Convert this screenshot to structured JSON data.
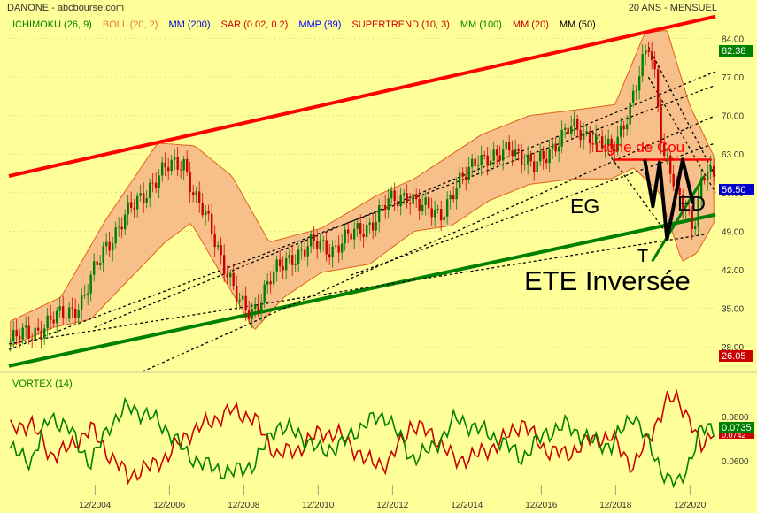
{
  "header": {
    "symbol": "DANONE - abcbourse.com",
    "period": "20 ANS - MENSUEL"
  },
  "indicators": [
    {
      "label": "ICHIMOKU (26, 9)",
      "color": "#008000"
    },
    {
      "label": "BOLL (20, 2)",
      "color": "#e8734a"
    },
    {
      "label": "MM (200)",
      "color": "#0000cc"
    },
    {
      "label": "SAR (0.02, 0.2)",
      "color": "#cc0000"
    },
    {
      "label": "MMP (89)",
      "color": "#0000ff"
    },
    {
      "label": "SUPERTREND (10, 3)",
      "color": "#cc0000"
    },
    {
      "label": "MM (100)",
      "color": "#008000"
    },
    {
      "label": "MM (20)",
      "color": "#cc0000"
    },
    {
      "label": "MM (50)",
      "color": "#000000"
    }
  ],
  "colors": {
    "background": "#ffff99",
    "up_candle": "#008000",
    "down_candle": "#cc0000",
    "bollinger_fill": "#f7c08a",
    "bollinger_line": "#e06020",
    "resistance_line": "#ff0000",
    "support_line": "#008000",
    "neckline": "#ff0000",
    "pattern": "#000000"
  },
  "annotations": {
    "neckline_label": "Ligne de Cou",
    "left_shoulder": "EG",
    "right_shoulder": "ED",
    "head": "T",
    "pattern_name": "ETE Inversée"
  },
  "price_badges": {
    "high": "82.38",
    "last": "56.50",
    "low": "26.05"
  },
  "vortex": {
    "label": "VORTEX (14)",
    "ticks": [
      "0.0800",
      "0.0600"
    ],
    "value_badge": "0.0735",
    "value_badge_hidden": "0.0742"
  },
  "chart_data": {
    "type": "candlestick",
    "title": "DANONE",
    "x_tick_labels": [
      "12/2004",
      "12/2006",
      "12/2008",
      "12/2010",
      "12/2012",
      "12/2014",
      "12/2016",
      "12/2018",
      "12/2020"
    ],
    "y_tick_labels": [
      "84.00",
      "77.00",
      "70.00",
      "63.00",
      "56.00",
      "49.00",
      "42.00",
      "35.00",
      "28.00"
    ],
    "ylim": [
      23.5,
      86.5
    ],
    "x_range": [
      2002.6,
      2021.6
    ],
    "close_anchors": [
      {
        "x": 2002.65,
        "y": 29.0
      },
      {
        "x": 2003.3,
        "y": 31.0
      },
      {
        "x": 2004.0,
        "y": 33.5
      },
      {
        "x": 2004.6,
        "y": 36.5
      },
      {
        "x": 2005.2,
        "y": 46.5
      },
      {
        "x": 2005.8,
        "y": 52.0
      },
      {
        "x": 2006.4,
        "y": 57.5
      },
      {
        "x": 2006.9,
        "y": 60.5
      },
      {
        "x": 2007.3,
        "y": 62.0
      },
      {
        "x": 2007.6,
        "y": 55.0
      },
      {
        "x": 2008.0,
        "y": 50.0
      },
      {
        "x": 2008.35,
        "y": 44.0
      },
      {
        "x": 2008.8,
        "y": 35.5
      },
      {
        "x": 2009.1,
        "y": 34.0
      },
      {
        "x": 2009.6,
        "y": 40.0
      },
      {
        "x": 2010.2,
        "y": 44.5
      },
      {
        "x": 2010.8,
        "y": 46.5
      },
      {
        "x": 2011.3,
        "y": 46.0
      },
      {
        "x": 2011.8,
        "y": 48.0
      },
      {
        "x": 2012.4,
        "y": 51.0
      },
      {
        "x": 2012.8,
        "y": 54.0
      },
      {
        "x": 2013.3,
        "y": 56.0
      },
      {
        "x": 2013.7,
        "y": 53.0
      },
      {
        "x": 2014.2,
        "y": 52.5
      },
      {
        "x": 2014.8,
        "y": 58.0
      },
      {
        "x": 2015.2,
        "y": 63.0
      },
      {
        "x": 2015.7,
        "y": 61.5
      },
      {
        "x": 2016.1,
        "y": 65.0
      },
      {
        "x": 2016.7,
        "y": 60.0
      },
      {
        "x": 2017.2,
        "y": 64.5
      },
      {
        "x": 2017.7,
        "y": 67.5
      },
      {
        "x": 2018.3,
        "y": 66.5
      },
      {
        "x": 2018.8,
        "y": 63.0
      },
      {
        "x": 2019.2,
        "y": 70.0
      },
      {
        "x": 2019.55,
        "y": 77.0
      },
      {
        "x": 2019.8,
        "y": 82.5
      },
      {
        "x": 2020.0,
        "y": 76.5
      },
      {
        "x": 2020.2,
        "y": 63.0
      },
      {
        "x": 2020.35,
        "y": 62.0
      },
      {
        "x": 2020.55,
        "y": 55.0
      },
      {
        "x": 2020.8,
        "y": 52.5
      },
      {
        "x": 2021.0,
        "y": 49.5
      },
      {
        "x": 2021.2,
        "y": 58.0
      },
      {
        "x": 2021.4,
        "y": 61.0
      },
      {
        "x": 2021.6,
        "y": 56.5
      }
    ],
    "bollinger_upper_anchors": [
      {
        "x": 2002.6,
        "y": 32.5
      },
      {
        "x": 2004.0,
        "y": 37.0
      },
      {
        "x": 2005.2,
        "y": 51.0
      },
      {
        "x": 2006.6,
        "y": 65.0
      },
      {
        "x": 2007.6,
        "y": 64.5
      },
      {
        "x": 2008.6,
        "y": 59.0
      },
      {
        "x": 2009.6,
        "y": 47.0
      },
      {
        "x": 2011.0,
        "y": 49.5
      },
      {
        "x": 2012.5,
        "y": 55.5
      },
      {
        "x": 2013.5,
        "y": 58.5
      },
      {
        "x": 2015.3,
        "y": 66.5
      },
      {
        "x": 2016.6,
        "y": 70.0
      },
      {
        "x": 2017.8,
        "y": 71.0
      },
      {
        "x": 2018.9,
        "y": 72.0
      },
      {
        "x": 2019.7,
        "y": 85.0
      },
      {
        "x": 2020.3,
        "y": 85.5
      },
      {
        "x": 2020.9,
        "y": 72.0
      },
      {
        "x": 2021.6,
        "y": 62.0
      }
    ],
    "bollinger_lower_anchors": [
      {
        "x": 2002.6,
        "y": 28.0
      },
      {
        "x": 2003.8,
        "y": 31.5
      },
      {
        "x": 2004.8,
        "y": 33.0
      },
      {
        "x": 2005.8,
        "y": 40.0
      },
      {
        "x": 2006.8,
        "y": 47.0
      },
      {
        "x": 2007.5,
        "y": 50.5
      },
      {
        "x": 2008.5,
        "y": 39.0
      },
      {
        "x": 2009.2,
        "y": 31.0
      },
      {
        "x": 2010.0,
        "y": 37.0
      },
      {
        "x": 2011.0,
        "y": 41.5
      },
      {
        "x": 2012.3,
        "y": 43.0
      },
      {
        "x": 2013.5,
        "y": 49.0
      },
      {
        "x": 2014.5,
        "y": 50.0
      },
      {
        "x": 2015.5,
        "y": 54.5
      },
      {
        "x": 2016.6,
        "y": 57.5
      },
      {
        "x": 2017.8,
        "y": 58.5
      },
      {
        "x": 2018.8,
        "y": 58.5
      },
      {
        "x": 2019.4,
        "y": 60.5
      },
      {
        "x": 2020.1,
        "y": 56.0
      },
      {
        "x": 2020.7,
        "y": 43.5
      },
      {
        "x": 2021.1,
        "y": 45.0
      },
      {
        "x": 2021.6,
        "y": 51.0
      }
    ],
    "trendlines": [
      {
        "name": "resistance",
        "style": "solid",
        "color": "#ff0000",
        "width": 4,
        "p1": [
          2002.6,
          59.0
        ],
        "p2": [
          2021.6,
          88.0
        ]
      },
      {
        "name": "support",
        "style": "solid",
        "color": "#008000",
        "width": 4,
        "p1": [
          2002.6,
          24.5
        ],
        "p2": [
          2021.6,
          52.0
        ]
      },
      {
        "name": "channel-1",
        "style": "dashed",
        "color": "#000000",
        "width": 1.3,
        "p1": [
          2002.6,
          27.5
        ],
        "p2": [
          2021.6,
          75.5
        ]
      },
      {
        "name": "channel-2",
        "style": "dashed",
        "color": "#000000",
        "width": 1.3,
        "p1": [
          2004.9,
          31.5
        ],
        "p2": [
          2021.6,
          78.0
        ]
      },
      {
        "name": "channel-3",
        "style": "dashed",
        "color": "#000000",
        "width": 1.3,
        "p1": [
          2006.2,
          23.5
        ],
        "p2": [
          2021.6,
          70.0
        ]
      },
      {
        "name": "channel-4",
        "style": "dashed",
        "color": "#000000",
        "width": 1.3,
        "p1": [
          2011.8,
          41.0
        ],
        "p2": [
          2021.6,
          65.0
        ]
      },
      {
        "name": "channel-5",
        "style": "dashed",
        "color": "#000000",
        "width": 1.3,
        "p1": [
          2002.6,
          28.5
        ],
        "p2": [
          2021.4,
          48.5
        ]
      },
      {
        "name": "down-1",
        "style": "dashed",
        "color": "#000000",
        "width": 1.3,
        "p1": [
          2019.8,
          82.5
        ],
        "p2": [
          2021.6,
          59.0
        ]
      },
      {
        "name": "down-2",
        "style": "dashed",
        "color": "#000000",
        "width": 1.3,
        "p1": [
          2019.8,
          77.0
        ],
        "p2": [
          2021.6,
          56.0
        ]
      },
      {
        "name": "down-3",
        "style": "dashed",
        "color": "#000000",
        "width": 1.3,
        "p1": [
          2018.3,
          67.0
        ],
        "p2": [
          2020.3,
          48.5
        ]
      },
      {
        "name": "neckline",
        "style": "solid",
        "color": "#ff0000",
        "width": 2.5,
        "p1": [
          2018.9,
          62.0
        ],
        "p2": [
          2021.5,
          62.0
        ]
      },
      {
        "name": "head-support",
        "style": "solid",
        "color": "#008000",
        "width": 3,
        "p1": [
          2019.9,
          43.5
        ],
        "p2": [
          2021.3,
          59.0
        ]
      }
    ],
    "pattern_path": [
      {
        "x": 2019.7,
        "y": 62.0
      },
      {
        "x": 2019.92,
        "y": 53.5
      },
      {
        "x": 2020.1,
        "y": 61.5
      },
      {
        "x": 2020.3,
        "y": 47.5
      },
      {
        "x": 2020.72,
        "y": 62.0
      },
      {
        "x": 2021.0,
        "y": 54.0
      }
    ],
    "vortex_ylim": [
      0.052,
      0.086
    ],
    "vortex_plus_anchors": [
      {
        "x": 2002.6,
        "y": 0.066
      },
      {
        "x": 2003.2,
        "y": 0.062
      },
      {
        "x": 2003.7,
        "y": 0.077
      },
      {
        "x": 2004.2,
        "y": 0.073
      },
      {
        "x": 2004.8,
        "y": 0.061
      },
      {
        "x": 2005.3,
        "y": 0.074
      },
      {
        "x": 2005.8,
        "y": 0.08
      },
      {
        "x": 2006.4,
        "y": 0.077
      },
      {
        "x": 2006.9,
        "y": 0.072
      },
      {
        "x": 2007.4,
        "y": 0.064
      },
      {
        "x": 2008.0,
        "y": 0.06
      },
      {
        "x": 2008.6,
        "y": 0.058
      },
      {
        "x": 2009.2,
        "y": 0.061
      },
      {
        "x": 2009.8,
        "y": 0.074
      },
      {
        "x": 2010.4,
        "y": 0.071
      },
      {
        "x": 2011.0,
        "y": 0.065
      },
      {
        "x": 2011.6,
        "y": 0.068
      },
      {
        "x": 2012.2,
        "y": 0.075
      },
      {
        "x": 2012.8,
        "y": 0.077
      },
      {
        "x": 2013.4,
        "y": 0.063
      },
      {
        "x": 2014.0,
        "y": 0.066
      },
      {
        "x": 2014.6,
        "y": 0.076
      },
      {
        "x": 2015.2,
        "y": 0.073
      },
      {
        "x": 2015.8,
        "y": 0.069
      },
      {
        "x": 2016.4,
        "y": 0.063
      },
      {
        "x": 2017.0,
        "y": 0.071
      },
      {
        "x": 2017.6,
        "y": 0.074
      },
      {
        "x": 2018.2,
        "y": 0.069
      },
      {
        "x": 2018.8,
        "y": 0.067
      },
      {
        "x": 2019.4,
        "y": 0.078
      },
      {
        "x": 2019.9,
        "y": 0.065
      },
      {
        "x": 2020.3,
        "y": 0.056
      },
      {
        "x": 2020.6,
        "y": 0.054
      },
      {
        "x": 2020.9,
        "y": 0.062
      },
      {
        "x": 2021.2,
        "y": 0.072
      },
      {
        "x": 2021.4,
        "y": 0.073
      },
      {
        "x": 2021.6,
        "y": 0.0735
      }
    ],
    "vortex_minus_anchors": [
      {
        "x": 2002.6,
        "y": 0.072
      },
      {
        "x": 2003.2,
        "y": 0.075
      },
      {
        "x": 2003.7,
        "y": 0.064
      },
      {
        "x": 2004.2,
        "y": 0.066
      },
      {
        "x": 2004.8,
        "y": 0.073
      },
      {
        "x": 2005.3,
        "y": 0.064
      },
      {
        "x": 2005.8,
        "y": 0.057
      },
      {
        "x": 2006.4,
        "y": 0.06
      },
      {
        "x": 2006.9,
        "y": 0.064
      },
      {
        "x": 2007.4,
        "y": 0.071
      },
      {
        "x": 2008.0,
        "y": 0.075
      },
      {
        "x": 2008.6,
        "y": 0.079
      },
      {
        "x": 2009.2,
        "y": 0.076
      },
      {
        "x": 2009.8,
        "y": 0.064
      },
      {
        "x": 2010.4,
        "y": 0.066
      },
      {
        "x": 2011.0,
        "y": 0.072
      },
      {
        "x": 2011.6,
        "y": 0.07
      },
      {
        "x": 2012.2,
        "y": 0.062
      },
      {
        "x": 2012.8,
        "y": 0.061
      },
      {
        "x": 2013.4,
        "y": 0.074
      },
      {
        "x": 2014.0,
        "y": 0.071
      },
      {
        "x": 2014.6,
        "y": 0.062
      },
      {
        "x": 2015.2,
        "y": 0.064
      },
      {
        "x": 2015.8,
        "y": 0.068
      },
      {
        "x": 2016.4,
        "y": 0.075
      },
      {
        "x": 2017.0,
        "y": 0.066
      },
      {
        "x": 2017.6,
        "y": 0.064
      },
      {
        "x": 2018.2,
        "y": 0.069
      },
      {
        "x": 2018.8,
        "y": 0.07
      },
      {
        "x": 2019.4,
        "y": 0.06
      },
      {
        "x": 2019.9,
        "y": 0.072
      },
      {
        "x": 2020.3,
        "y": 0.082
      },
      {
        "x": 2020.6,
        "y": 0.083
      },
      {
        "x": 2020.9,
        "y": 0.076
      },
      {
        "x": 2021.2,
        "y": 0.066
      },
      {
        "x": 2021.4,
        "y": 0.07
      },
      {
        "x": 2021.6,
        "y": 0.0742
      }
    ]
  }
}
